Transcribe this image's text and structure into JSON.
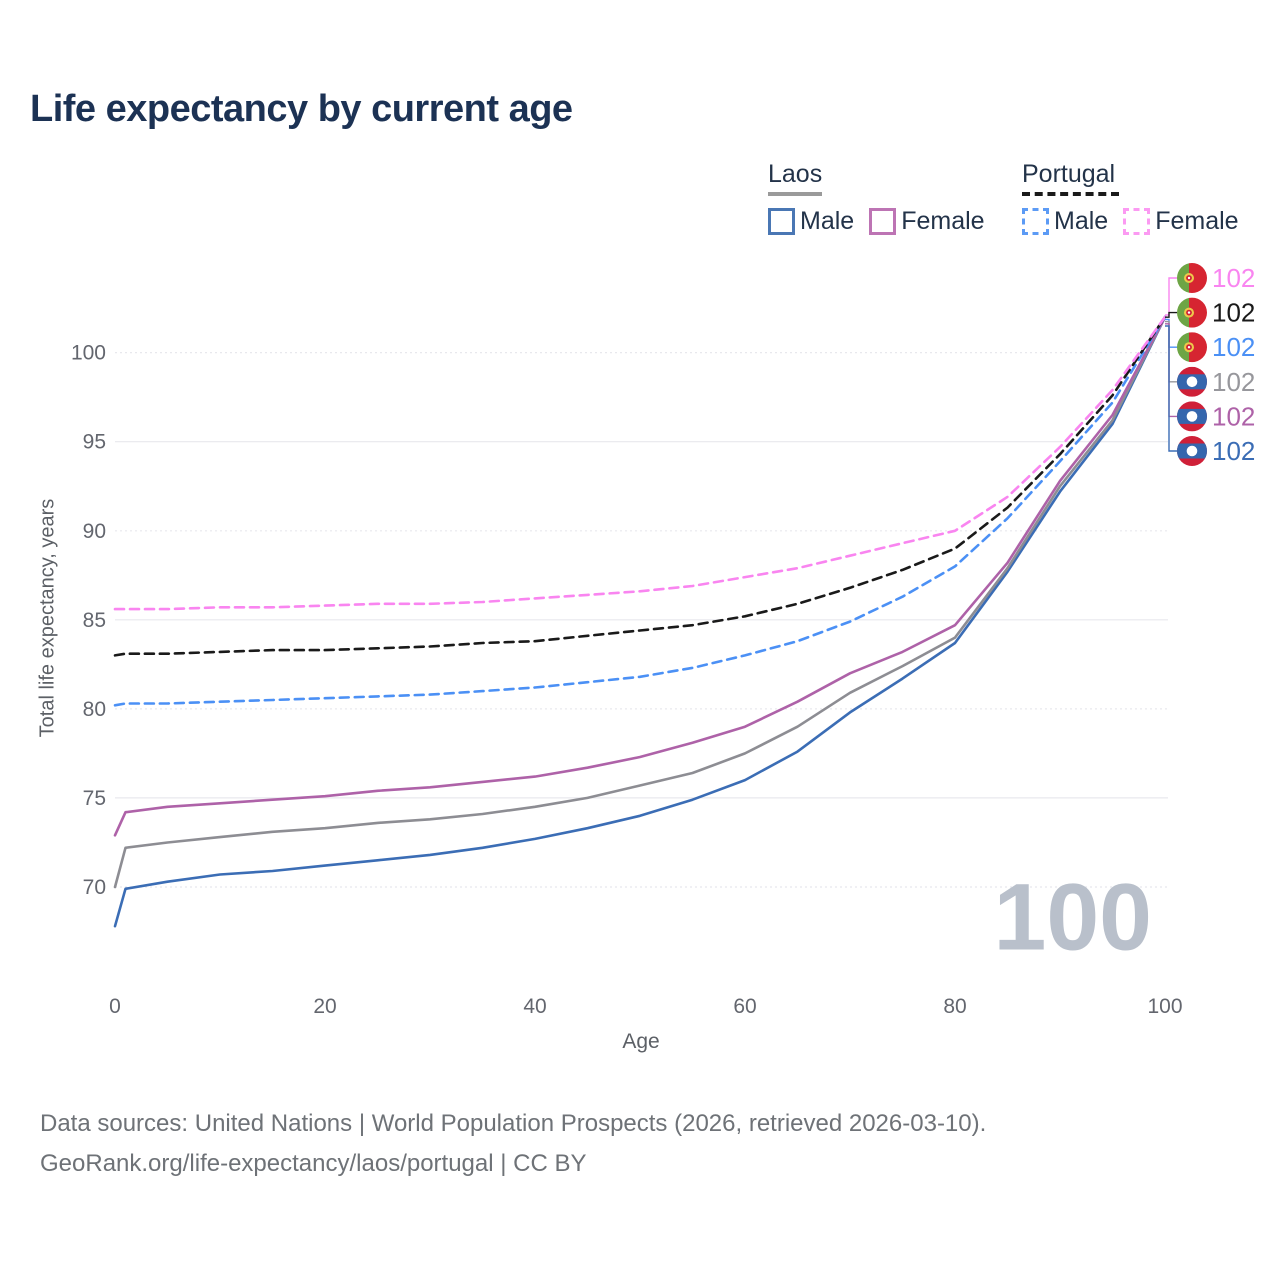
{
  "header": {
    "title": "Life expectancy by current age"
  },
  "legend": {
    "groups": [
      {
        "country": "Laos",
        "line_style": "solid",
        "underline_color": "#9a9a9a",
        "items": [
          {
            "label": "Male",
            "color": "#4a77b4",
            "style": "solid"
          },
          {
            "label": "Female",
            "color": "#bd74b4",
            "style": "solid"
          }
        ]
      },
      {
        "country": "Portugal",
        "line_style": "dashed",
        "underline_color": "#1a1a1a",
        "items": [
          {
            "label": "Male",
            "color": "#5c9bf5",
            "style": "dashed"
          },
          {
            "label": "Female",
            "color": "#fb9af2",
            "style": "dashed"
          }
        ]
      }
    ]
  },
  "chart_data": {
    "type": "line",
    "title": "Life expectancy by current age",
    "xlabel": "Age",
    "ylabel": "Total life expectancy, years",
    "xlim": [
      0,
      100
    ],
    "ylim": [
      70,
      102
    ],
    "x_ticks": [
      0,
      20,
      40,
      60,
      80,
      100
    ],
    "y_ticks": [
      70,
      75,
      80,
      85,
      90,
      95,
      100
    ],
    "grid": true,
    "legend_position": "top-right",
    "age_indicator": "100",
    "x": [
      0,
      1,
      5,
      10,
      15,
      20,
      25,
      30,
      35,
      40,
      45,
      50,
      55,
      60,
      65,
      70,
      75,
      80,
      85,
      90,
      95,
      100
    ],
    "series": [
      {
        "id": "laos-male",
        "name": "Laos Male",
        "country": "Laos",
        "sex": "Male",
        "color": "#3b6db5",
        "dash": "solid",
        "end_label": "102",
        "values": [
          67.8,
          69.9,
          70.3,
          70.7,
          70.9,
          71.2,
          71.5,
          71.8,
          72.2,
          72.7,
          73.3,
          74.0,
          74.9,
          76.0,
          77.6,
          79.8,
          81.7,
          83.7,
          87.7,
          92.2,
          96.0,
          102
        ]
      },
      {
        "id": "laos-both",
        "name": "Laos Both sexes",
        "country": "Laos",
        "sex": "Both",
        "color": "#8d8d93",
        "dash": "solid",
        "end_label": "102",
        "values": [
          70.0,
          72.2,
          72.5,
          72.8,
          73.1,
          73.3,
          73.6,
          73.8,
          74.1,
          74.5,
          75.0,
          75.7,
          76.4,
          77.5,
          79.0,
          80.9,
          82.4,
          84.0,
          87.9,
          92.5,
          96.2,
          102
        ]
      },
      {
        "id": "laos-female",
        "name": "Laos Female",
        "country": "Laos",
        "sex": "Female",
        "color": "#ae62a8",
        "dash": "solid",
        "end_label": "102",
        "values": [
          72.9,
          74.2,
          74.5,
          74.7,
          74.9,
          75.1,
          75.4,
          75.6,
          75.9,
          76.2,
          76.7,
          77.3,
          78.1,
          79.0,
          80.4,
          82.0,
          83.2,
          84.7,
          88.2,
          92.8,
          96.5,
          102
        ]
      },
      {
        "id": "portugal-male",
        "name": "Portugal Male",
        "country": "Portugal",
        "sex": "Male",
        "color": "#4b90f5",
        "dash": "dashed",
        "end_label": "102",
        "values": [
          80.2,
          80.3,
          80.3,
          80.4,
          80.5,
          80.6,
          80.7,
          80.8,
          81.0,
          81.2,
          81.5,
          81.8,
          82.3,
          83.0,
          83.8,
          84.9,
          86.3,
          88.0,
          90.7,
          93.9,
          97.2,
          102
        ]
      },
      {
        "id": "portugal-both",
        "name": "Portugal Both sexes",
        "country": "Portugal",
        "sex": "Both",
        "color": "#1a1a1a",
        "dash": "dashed",
        "end_label": "102",
        "values": [
          83.0,
          83.1,
          83.1,
          83.2,
          83.3,
          83.3,
          83.4,
          83.5,
          83.7,
          83.8,
          84.1,
          84.4,
          84.7,
          85.2,
          85.9,
          86.8,
          87.8,
          89.0,
          91.3,
          94.3,
          97.6,
          102
        ]
      },
      {
        "id": "portugal-female",
        "name": "Portugal Female",
        "country": "Portugal",
        "sex": "Female",
        "color": "#f985f0",
        "dash": "dashed",
        "end_label": "102",
        "values": [
          85.6,
          85.6,
          85.6,
          85.7,
          85.7,
          85.8,
          85.9,
          85.9,
          86.0,
          86.2,
          86.4,
          86.6,
          86.9,
          87.4,
          87.9,
          88.6,
          89.3,
          90.0,
          91.9,
          94.7,
          97.9,
          102
        ]
      }
    ],
    "end_labels": [
      {
        "value": "102",
        "series": "Portugal Female",
        "color": "#f985f0",
        "flag": "portugal"
      },
      {
        "value": "102",
        "series": "Portugal Both sexes",
        "color": "#1a1a1a",
        "flag": "portugal"
      },
      {
        "value": "102",
        "series": "Portugal Male",
        "color": "#4b90f5",
        "flag": "portugal"
      },
      {
        "value": "102",
        "series": "Laos Both sexes",
        "color": "#97979c",
        "flag": "laos"
      },
      {
        "value": "102",
        "series": "Laos Female",
        "color": "#ae62a8",
        "flag": "laos"
      },
      {
        "value": "102",
        "series": "Laos Male",
        "color": "#3b6db5",
        "flag": "laos"
      }
    ]
  },
  "footer": {
    "line1": "Data sources: United Nations | World Population Prospects (2026, retrieved 2026-03-10).",
    "line2": "GeoRank.org/life-expectancy/laos/portugal | CC BY"
  }
}
